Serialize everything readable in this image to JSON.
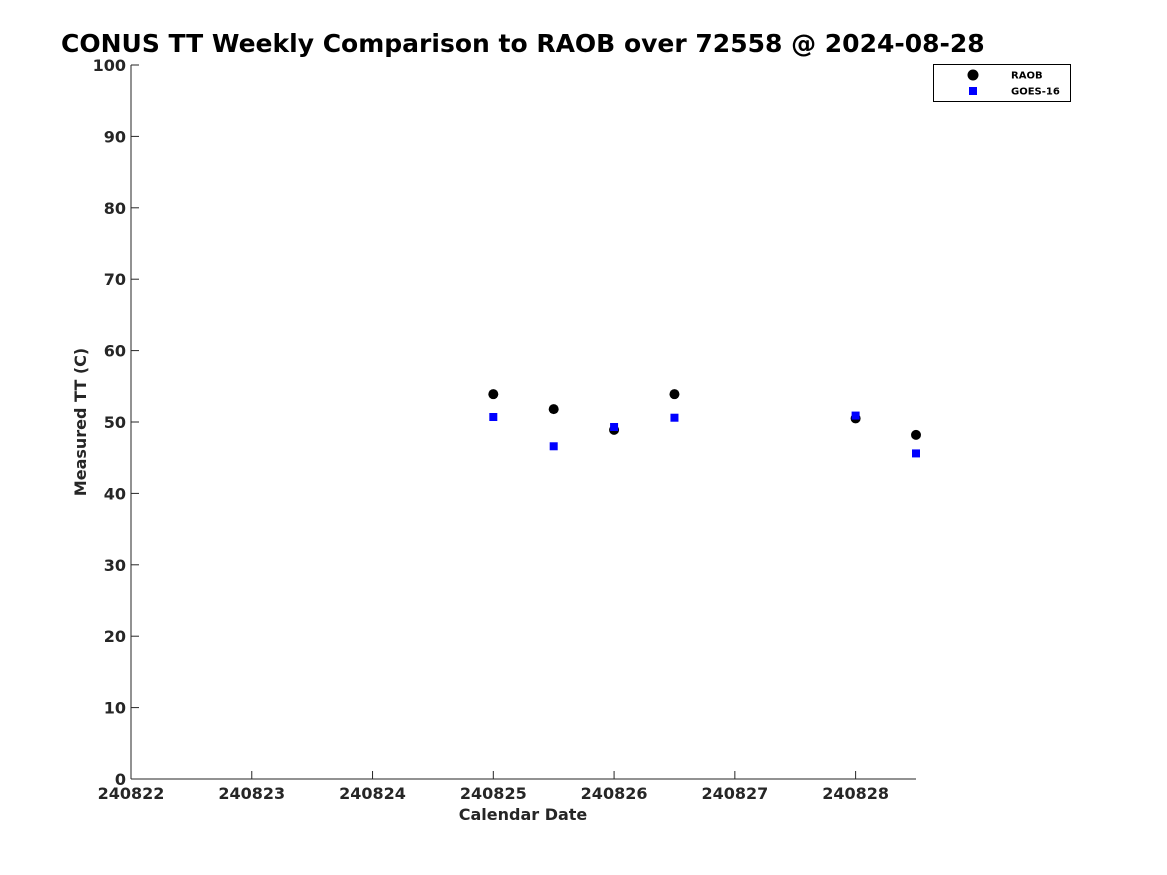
{
  "chart_data": {
    "type": "scatter",
    "title": "CONUS TT Weekly Comparison to RAOB over 72558 @ 2024-08-28",
    "xlabel": "Calendar Date",
    "ylabel": "Measured TT (C)",
    "xlim": [
      240822,
      240828.5
    ],
    "ylim": [
      0,
      100
    ],
    "x_ticks": [
      240822,
      240823,
      240824,
      240825,
      240826,
      240827,
      240828
    ],
    "x_tick_labels": [
      "240822",
      "240823",
      "240824",
      "240825",
      "240826",
      "240827",
      "240828"
    ],
    "y_ticks": [
      0,
      10,
      20,
      30,
      40,
      50,
      60,
      70,
      80,
      90,
      100
    ],
    "y_tick_labels": [
      "0",
      "10",
      "20",
      "30",
      "40",
      "50",
      "60",
      "70",
      "80",
      "90",
      "100"
    ],
    "grid": false,
    "legend_position": "top-right",
    "series": [
      {
        "name": "RAOB",
        "marker": "circle",
        "color": "#000000",
        "x": [
          240825,
          240825.5,
          240826,
          240826.5,
          240828,
          240828.5
        ],
        "y": [
          53.9,
          51.8,
          48.9,
          53.9,
          50.5,
          48.2
        ]
      },
      {
        "name": "GOES-16",
        "marker": "square",
        "color": "#0000ff",
        "x": [
          240825,
          240825.5,
          240826,
          240826.5,
          240828,
          240828.5
        ],
        "y": [
          50.7,
          46.6,
          49.3,
          50.6,
          50.9,
          45.6
        ]
      }
    ]
  }
}
